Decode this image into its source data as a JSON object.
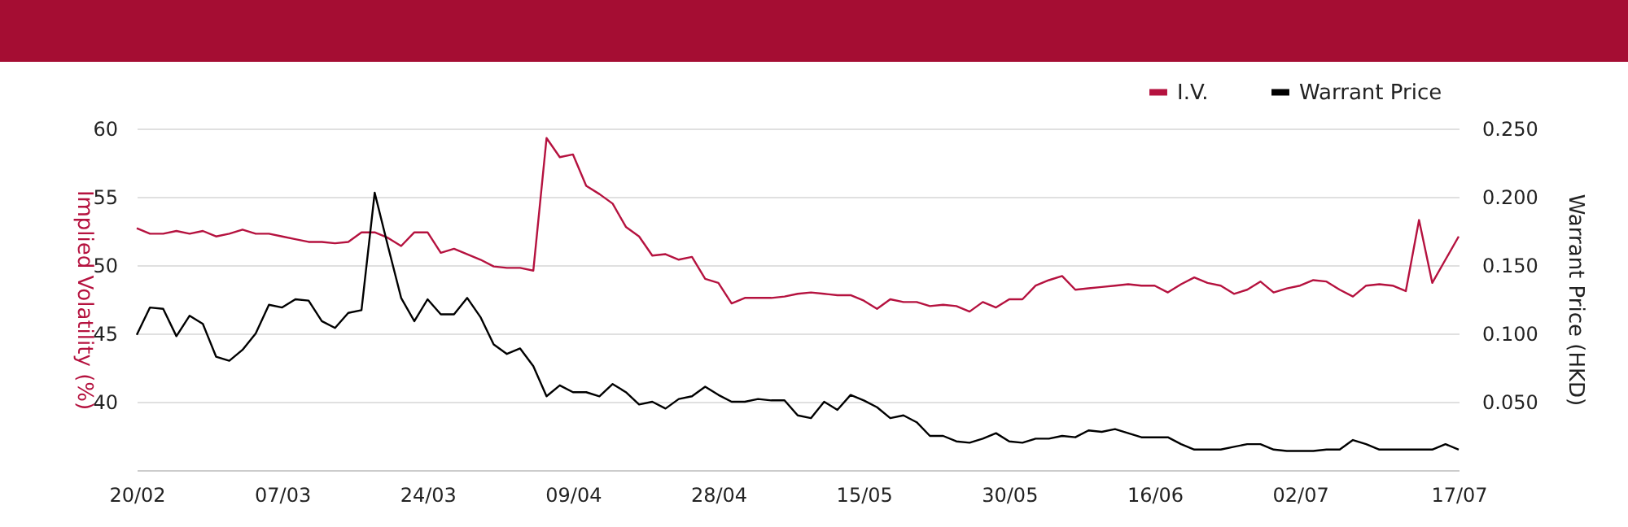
{
  "chart_data": {
    "type": "line",
    "ylabel": "Implied Volatility (%)",
    "y2label": "Warrant Price (HKD)",
    "categories": [
      "20/02",
      null,
      null,
      null,
      null,
      null,
      null,
      null,
      null,
      null,
      null,
      "07/03",
      null,
      null,
      null,
      null,
      null,
      null,
      null,
      null,
      null,
      null,
      "24/03",
      null,
      null,
      null,
      null,
      null,
      null,
      null,
      null,
      null,
      null,
      "09/04",
      null,
      null,
      null,
      null,
      null,
      null,
      null,
      null,
      null,
      null,
      "28/04",
      null,
      null,
      null,
      null,
      null,
      null,
      null,
      null,
      null,
      null,
      "15/05",
      null,
      null,
      null,
      null,
      null,
      null,
      null,
      null,
      null,
      null,
      "30/05",
      null,
      null,
      null,
      null,
      null,
      null,
      null,
      null,
      null,
      null,
      "16/06",
      null,
      null,
      null,
      null,
      null,
      null,
      null,
      null,
      null,
      null,
      "02/07",
      null,
      null,
      null,
      null,
      null,
      null,
      null,
      null,
      null,
      null,
      null,
      "17/07"
    ],
    "series": [
      {
        "name": "I.V.",
        "color": "#b5123f",
        "values": [
          52.7,
          52.3,
          52.3,
          52.5,
          52.3,
          52.5,
          52.1,
          52.3,
          52.6,
          52.3,
          52.3,
          52.1,
          51.9,
          51.7,
          51.7,
          51.6,
          51.7,
          52.4,
          52.4,
          52.0,
          51.4,
          52.4,
          52.4,
          50.9,
          51.2,
          50.8,
          50.4,
          49.9,
          49.8,
          49.8,
          49.6,
          59.3,
          57.9,
          58.1,
          55.8,
          55.2,
          54.5,
          52.8,
          52.1,
          50.7,
          50.8,
          50.4,
          50.6,
          49.0,
          48.7,
          47.2,
          47.6,
          47.6,
          47.6,
          47.7,
          47.9,
          48.0,
          47.9,
          47.8,
          47.8,
          47.4,
          46.8,
          47.5,
          47.3,
          47.3,
          47.0,
          47.1,
          47.0,
          46.6,
          47.3,
          46.9,
          47.5,
          47.5,
          48.5,
          48.9,
          49.2,
          48.2,
          48.3,
          48.4,
          48.5,
          48.6,
          48.5,
          48.5,
          48.0,
          48.6,
          49.1,
          48.7,
          48.5,
          47.9,
          48.2,
          48.8,
          48.0,
          48.3,
          48.5,
          48.9,
          48.8,
          48.2,
          47.7,
          48.5,
          48.6,
          48.5,
          48.1,
          53.3,
          48.7,
          50.4,
          52.1
        ]
      },
      {
        "name": "Warrant Price",
        "color": "#000000",
        "axis": "y2",
        "values": [
          0.099,
          0.119,
          0.118,
          0.098,
          0.113,
          0.107,
          0.083,
          0.08,
          0.088,
          0.1,
          0.121,
          0.119,
          0.125,
          0.124,
          0.109,
          0.104,
          0.115,
          0.117,
          0.203,
          0.164,
          0.126,
          0.109,
          0.125,
          0.114,
          0.114,
          0.126,
          0.112,
          0.092,
          0.085,
          0.089,
          0.076,
          0.054,
          0.062,
          0.057,
          0.057,
          0.054,
          0.063,
          0.057,
          0.048,
          0.05,
          0.045,
          0.052,
          0.054,
          0.061,
          0.055,
          0.05,
          0.05,
          0.052,
          0.051,
          0.051,
          0.04,
          0.038,
          0.05,
          0.044,
          0.055,
          0.051,
          0.046,
          0.038,
          0.04,
          0.035,
          0.025,
          0.025,
          0.021,
          0.02,
          0.023,
          0.027,
          0.021,
          0.02,
          0.023,
          0.023,
          0.025,
          0.024,
          0.029,
          0.028,
          0.03,
          0.027,
          0.024,
          0.024,
          0.024,
          0.019,
          0.015,
          0.015,
          0.015,
          0.017,
          0.019,
          0.019,
          0.015,
          0.014,
          0.014,
          0.014,
          0.015,
          0.015,
          0.022,
          0.019,
          0.015,
          0.015,
          0.015,
          0.015,
          0.015,
          0.019,
          0.015
        ]
      }
    ],
    "ylim": [
      35,
      60
    ],
    "yticks": [
      40,
      45,
      50,
      55,
      60
    ],
    "y2lim": [
      0,
      0.25
    ],
    "y2ticks": [
      {
        "value": 0.05,
        "label": "0.050"
      },
      {
        "value": 0.1,
        "label": "0.100"
      },
      {
        "value": 0.15,
        "label": "0.150"
      },
      {
        "value": 0.2,
        "label": "0.200"
      },
      {
        "value": 0.25,
        "label": "0.250"
      }
    ],
    "grid": "y",
    "legend": "top right",
    "marker": "none",
    "line_style": "solid"
  }
}
